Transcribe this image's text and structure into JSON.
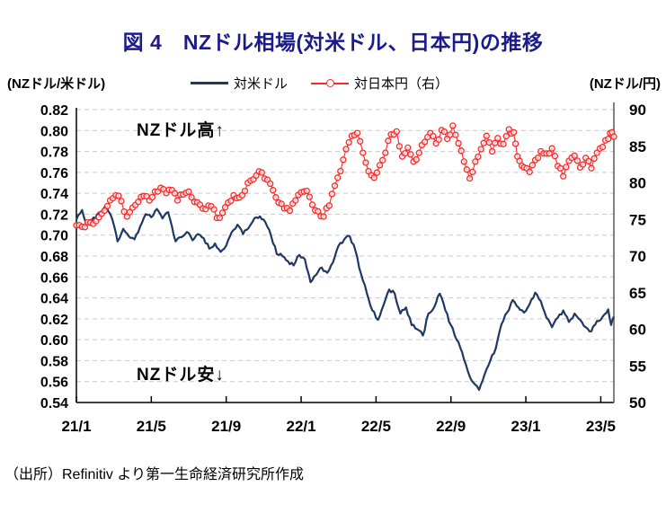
{
  "page": {
    "title": "図 4　NZドル相場(対米ドル、日本円)の推移",
    "source": "（出所）Refinitiv より第一生命経済研究所作成"
  },
  "header": {
    "left_unit": "(NZドル/米ドル)",
    "right_unit": "(NZドル/円)"
  },
  "legend": [
    {
      "label": "対米ドル",
      "color": "#1f3864"
    },
    {
      "label": "対日本円（右）",
      "color": "#ff2727"
    }
  ],
  "annotations": {
    "high": "NZドル高↑",
    "low": "NZドル安↓"
  },
  "chart_data": {
    "type": "line",
    "title": "図4 NZドル相場(対米ドル、日本円)の推移",
    "grid": "dashed-horizontal",
    "legend_position": "top",
    "colors": {
      "navy": "#1f3864",
      "red": "#ff2727",
      "grid": "#c9c9c9",
      "axis": "#000000",
      "right_axis_line": "#595959"
    },
    "left_axis": {
      "label": "(NZドル/米ドル)",
      "min": 0.54,
      "max": 0.82,
      "step": 0.02,
      "tick_labels": [
        "0.82",
        "0.80",
        "0.78",
        "0.76",
        "0.74",
        "0.72",
        "0.70",
        "0.68",
        "0.66",
        "0.64",
        "0.62",
        "0.60",
        "0.58",
        "0.56",
        "0.54"
      ]
    },
    "right_axis": {
      "label": "(NZドル/円)",
      "min": 50,
      "max": 90,
      "step": 5,
      "tick_labels": [
        "90",
        "85",
        "80",
        "75",
        "70",
        "65",
        "60",
        "55",
        "50"
      ]
    },
    "x_axis": {
      "tick_labels": [
        "21/1",
        "21/5",
        "21/9",
        "22/1",
        "22/5",
        "22/9",
        "23/1",
        "23/5"
      ],
      "months_per_tick": 4,
      "max_month": 28.7,
      "unit": "year/month (2021/1 - 2023/6)"
    },
    "series": [
      {
        "name": "対米ドル",
        "axis": "left",
        "style": "solid",
        "color": "#1f3864",
        "points": [
          [
            0,
            0.715
          ],
          [
            0.3,
            0.724
          ],
          [
            0.5,
            0.712
          ],
          [
            1,
            0.716
          ],
          [
            1.3,
            0.722
          ],
          [
            1.6,
            0.727
          ],
          [
            1.9,
            0.716
          ],
          [
            2.2,
            0.694
          ],
          [
            2.5,
            0.706
          ],
          [
            2.8,
            0.699
          ],
          [
            3.1,
            0.696
          ],
          [
            3.4,
            0.708
          ],
          [
            3.7,
            0.72
          ],
          [
            4,
            0.717
          ],
          [
            4.3,
            0.725
          ],
          [
            4.6,
            0.716
          ],
          [
            4.9,
            0.722
          ],
          [
            5.3,
            0.694
          ],
          [
            5.6,
            0.698
          ],
          [
            5.9,
            0.703
          ],
          [
            6.2,
            0.695
          ],
          [
            6.5,
            0.701
          ],
          [
            6.8,
            0.697
          ],
          [
            7.1,
            0.687
          ],
          [
            7.4,
            0.692
          ],
          [
            7.7,
            0.684
          ],
          [
            8,
            0.69
          ],
          [
            8.3,
            0.703
          ],
          [
            8.6,
            0.71
          ],
          [
            8.9,
            0.701
          ],
          [
            9.2,
            0.707
          ],
          [
            9.5,
            0.716
          ],
          [
            9.8,
            0.718
          ],
          [
            10.1,
            0.712
          ],
          [
            10.4,
            0.699
          ],
          [
            10.7,
            0.682
          ],
          [
            11,
            0.68
          ],
          [
            11.3,
            0.675
          ],
          [
            11.6,
            0.671
          ],
          [
            11.9,
            0.681
          ],
          [
            12.2,
            0.677
          ],
          [
            12.5,
            0.655
          ],
          [
            12.8,
            0.662
          ],
          [
            13.1,
            0.669
          ],
          [
            13.4,
            0.664
          ],
          [
            13.7,
            0.674
          ],
          [
            14,
            0.69
          ],
          [
            14.3,
            0.696
          ],
          [
            14.6,
            0.699
          ],
          [
            14.9,
            0.685
          ],
          [
            15.2,
            0.663
          ],
          [
            15.5,
            0.645
          ],
          [
            15.8,
            0.628
          ],
          [
            16.1,
            0.619
          ],
          [
            16.4,
            0.633
          ],
          [
            16.7,
            0.648
          ],
          [
            17,
            0.644
          ],
          [
            17.3,
            0.625
          ],
          [
            17.6,
            0.631
          ],
          [
            17.9,
            0.614
          ],
          [
            18.2,
            0.61
          ],
          [
            18.5,
            0.604
          ],
          [
            18.8,
            0.625
          ],
          [
            19.1,
            0.631
          ],
          [
            19.4,
            0.644
          ],
          [
            19.7,
            0.628
          ],
          [
            20,
            0.614
          ],
          [
            20.3,
            0.6
          ],
          [
            20.6,
            0.588
          ],
          [
            20.9,
            0.57
          ],
          [
            21.2,
            0.559
          ],
          [
            21.5,
            0.552
          ],
          [
            21.8,
            0.567
          ],
          [
            22.1,
            0.58
          ],
          [
            22.4,
            0.592
          ],
          [
            22.7,
            0.615
          ],
          [
            23,
            0.626
          ],
          [
            23.3,
            0.638
          ],
          [
            23.6,
            0.631
          ],
          [
            23.9,
            0.626
          ],
          [
            24.2,
            0.634
          ],
          [
            24.5,
            0.645
          ],
          [
            24.8,
            0.637
          ],
          [
            25.1,
            0.621
          ],
          [
            25.4,
            0.612
          ],
          [
            25.7,
            0.621
          ],
          [
            26,
            0.628
          ],
          [
            26.3,
            0.617
          ],
          [
            26.6,
            0.625
          ],
          [
            26.9,
            0.619
          ],
          [
            27.2,
            0.612
          ],
          [
            27.5,
            0.608
          ],
          [
            27.8,
            0.618
          ],
          [
            28.1,
            0.622
          ],
          [
            28.4,
            0.629
          ],
          [
            28.55,
            0.614
          ],
          [
            28.7,
            0.622
          ]
        ]
      },
      {
        "name": "対日本円（右）",
        "axis": "right",
        "style": "line-open-circles",
        "color": "#ff2727",
        "points": [
          [
            0,
            74.2
          ],
          [
            0.3,
            74.0
          ],
          [
            0.6,
            74.6
          ],
          [
            0.9,
            74.4
          ],
          [
            1.2,
            75.3
          ],
          [
            1.5,
            76.2
          ],
          [
            1.8,
            77.6
          ],
          [
            2.1,
            78.3
          ],
          [
            2.4,
            77.5
          ],
          [
            2.7,
            75.4
          ],
          [
            3,
            76.6
          ],
          [
            3.3,
            77.4
          ],
          [
            3.6,
            78.2
          ],
          [
            3.9,
            77.6
          ],
          [
            4.2,
            78.8
          ],
          [
            4.5,
            79.3
          ],
          [
            4.8,
            78.6
          ],
          [
            5.1,
            79.0
          ],
          [
            5.4,
            77.6
          ],
          [
            5.7,
            78.4
          ],
          [
            6,
            78.8
          ],
          [
            6.3,
            77.4
          ],
          [
            6.6,
            77.0
          ],
          [
            6.9,
            76.4
          ],
          [
            7.2,
            76.8
          ],
          [
            7.5,
            75.2
          ],
          [
            7.8,
            75.9
          ],
          [
            8.1,
            77.3
          ],
          [
            8.4,
            78.3
          ],
          [
            8.7,
            78.0
          ],
          [
            9,
            78.9
          ],
          [
            9.3,
            80.3
          ],
          [
            9.6,
            81.0
          ],
          [
            9.9,
            81.4
          ],
          [
            10.2,
            80.4
          ],
          [
            10.5,
            79.0
          ],
          [
            10.8,
            77.3
          ],
          [
            11.1,
            76.5
          ],
          [
            11.4,
            76.2
          ],
          [
            11.7,
            77.6
          ],
          [
            12,
            78.7
          ],
          [
            12.3,
            78.9
          ],
          [
            12.6,
            77.0
          ],
          [
            12.9,
            76.1
          ],
          [
            13.2,
            75.4
          ],
          [
            13.5,
            76.9
          ],
          [
            13.8,
            79.6
          ],
          [
            14.1,
            81.6
          ],
          [
            14.4,
            84.6
          ],
          [
            14.7,
            86.4
          ],
          [
            15,
            86.8
          ],
          [
            15.3,
            84.1
          ],
          [
            15.6,
            81.6
          ],
          [
            15.9,
            80.7
          ],
          [
            16.2,
            82.4
          ],
          [
            16.5,
            84.1
          ],
          [
            16.8,
            86.6
          ],
          [
            17.1,
            87.0
          ],
          [
            17.4,
            83.6
          ],
          [
            17.7,
            84.8
          ],
          [
            18,
            82.9
          ],
          [
            18.3,
            84.1
          ],
          [
            18.6,
            85.6
          ],
          [
            18.9,
            86.8
          ],
          [
            19.2,
            85.4
          ],
          [
            19.5,
            87.2
          ],
          [
            19.8,
            86.0
          ],
          [
            20.1,
            87.8
          ],
          [
            20.4,
            85.4
          ],
          [
            20.7,
            82.9
          ],
          [
            21,
            80.6
          ],
          [
            21.3,
            82.9
          ],
          [
            21.6,
            84.6
          ],
          [
            21.9,
            86.4
          ],
          [
            22.2,
            84.3
          ],
          [
            22.5,
            86.1
          ],
          [
            22.8,
            85.3
          ],
          [
            23.1,
            87.3
          ],
          [
            23.35,
            86.9
          ],
          [
            23.55,
            83.6
          ],
          [
            23.9,
            82.1
          ],
          [
            24.2,
            81.5
          ],
          [
            24.5,
            83.1
          ],
          [
            24.8,
            84.3
          ],
          [
            25.1,
            84.0
          ],
          [
            25.4,
            84.7
          ],
          [
            25.7,
            82.3
          ],
          [
            26,
            80.9
          ],
          [
            26.3,
            83.0
          ],
          [
            26.6,
            83.7
          ],
          [
            26.9,
            82.1
          ],
          [
            27.2,
            83.4
          ],
          [
            27.5,
            82.0
          ],
          [
            27.8,
            84.1
          ],
          [
            28.1,
            84.9
          ],
          [
            28.4,
            86.0
          ],
          [
            28.6,
            86.9
          ],
          [
            28.7,
            86.3
          ]
        ]
      }
    ],
    "annotations": [
      {
        "text": "NZドル高↑",
        "position": "upper-left"
      },
      {
        "text": "NZドル安↓",
        "position": "lower-left"
      }
    ],
    "source": "（出所）Refinitiv より第一生命経済研究所作成"
  }
}
